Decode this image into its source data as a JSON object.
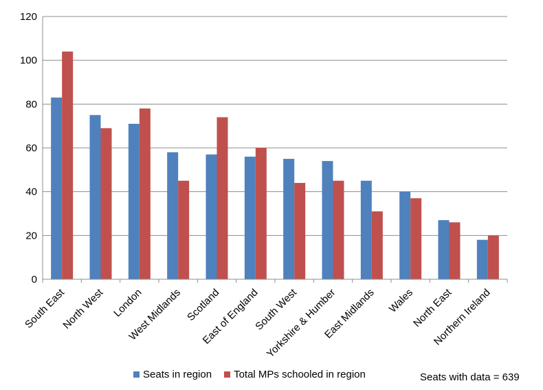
{
  "chart_data": {
    "type": "bar",
    "title": "",
    "xlabel": "",
    "ylabel": "",
    "ylim": [
      0,
      120
    ],
    "yticks": [
      0,
      20,
      40,
      60,
      80,
      100,
      120
    ],
    "grid": true,
    "legend_position": "bottom",
    "categories": [
      "South East",
      "North West",
      "London",
      "West Midlands",
      "Scotland",
      "East of England",
      "South West",
      "Yorkshire & Humber",
      "East Midlands",
      "Wales",
      "North East",
      "Northern Ireland"
    ],
    "series": [
      {
        "name": "Seats in region",
        "color": "#4F81BD",
        "values": [
          83,
          75,
          71,
          58,
          57,
          56,
          55,
          54,
          45,
          40,
          27,
          18
        ]
      },
      {
        "name": "Total MPs schooled in region",
        "color": "#C0504D",
        "values": [
          104,
          69,
          78,
          45,
          74,
          60,
          44,
          45,
          31,
          37,
          26,
          20
        ]
      }
    ],
    "annotation": "Seats with data = 639"
  }
}
